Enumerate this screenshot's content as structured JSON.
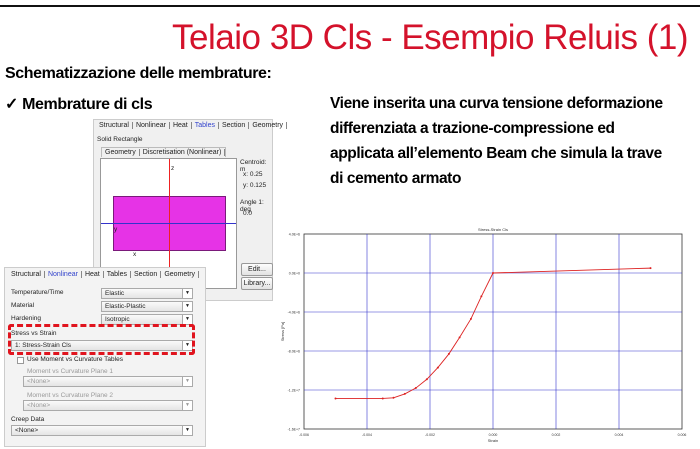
{
  "slide": {
    "title": "Telaio 3D  Cls - Esempio Reluis (1)",
    "heading": "Schematizzazione delle membrature:",
    "bullet": "Membrature di cls",
    "bullet_icon": "checkmark-icon",
    "description": "Viene inserita una curva tensione deformazione differenziata a trazione-compressione ed applicata all’elemento Beam che simula la trave di cemento armato",
    "accent_color": "#d4122b"
  },
  "geometry_panel": {
    "tabs": [
      "Structural",
      "Nonlinear",
      "Heat",
      "Tables",
      "Section",
      "Geometry"
    ],
    "active_tab": "Tables",
    "section_type": "Solid Rectangle",
    "inner_tabs": [
      "Geometry",
      "Discretisation (Nonlinear)"
    ],
    "axis_labels": {
      "z": "z",
      "y": "y",
      "x": "x"
    },
    "centroid_label": "Centroid: m",
    "centroid_x": "x: 0.25",
    "centroid_y": "y: 0.125",
    "angle_label": "Angle 1: deg",
    "angle_value": "0.0",
    "edit_button": "Edit...",
    "library_button": "Library...",
    "section_color": "#e633e6"
  },
  "nonlinear_panel": {
    "tabs": [
      "Structural",
      "Nonlinear",
      "Heat",
      "Tables",
      "Section",
      "Geometry"
    ],
    "active_tab": "Nonlinear",
    "rows": [
      {
        "label": "Temperature/Time",
        "value": "Elastic"
      },
      {
        "label": "Material",
        "value": "Elastic-Plastic"
      },
      {
        "label": "Hardening",
        "value": "Isotropic"
      }
    ],
    "stress_strain_label": "Stress vs Strain",
    "stress_strain_value": "1: Stress-Strain Cls",
    "use_moment_label": "Use Moment vs Curvature Tables",
    "use_moment_checked": false,
    "plane1_label": "Moment vs Curvature Plane 1",
    "plane1_value": "<None>",
    "plane2_label": "Moment vs Curvature Plane 2",
    "plane2_value": "<None>",
    "creep_label": "Creep Data",
    "creep_value": "<None>",
    "highlight_color": "#e0141e"
  },
  "chart_data": {
    "type": "line",
    "title": "Stress-Strain Cls",
    "xlabel": "Strain",
    "ylabel": "Stress [Pa]",
    "xlim": [
      -0.006,
      0.006
    ],
    "ylim": [
      -16000000,
      4000000
    ],
    "xticks": [
      "-0.006",
      "-0.004",
      "-0.002",
      "0.000",
      "0.002",
      "0.004",
      "0.006"
    ],
    "yticks": [
      "4.0E+6",
      "0.0E+0",
      "-4.0E+6",
      "-8.0E+6",
      "-1.2E+7",
      "-1.6E+7"
    ],
    "grid": true,
    "line_color": "#dd2222",
    "grid_color": "#3333cc",
    "x": [
      -0.005,
      -0.0035,
      -0.00316,
      -0.0028,
      -0.00245,
      -0.0021,
      -0.00175,
      -0.0014,
      -0.00106,
      -0.0007,
      -0.00037,
      0.0,
      0.005
    ],
    "y": [
      -12870000,
      -12870000,
      -12800000,
      -12400000,
      -11800000,
      -10900000,
      -9700000,
      -8300000,
      -6600000,
      -4700000,
      -2400000,
      0,
      500000
    ]
  }
}
